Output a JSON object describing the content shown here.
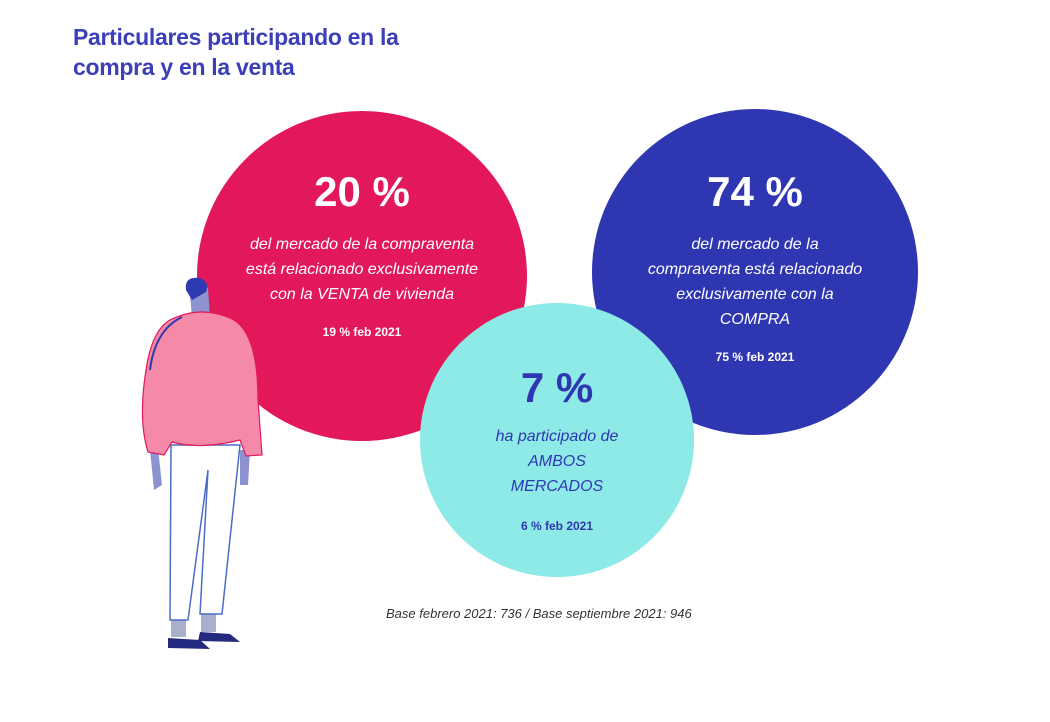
{
  "title": "Particulares participando en la compra y en la venta",
  "colors": {
    "title": "#3b3fb8",
    "venta": "#e2185a",
    "compra": "#2f36b2",
    "ambos": "#8eeae6"
  },
  "venta": {
    "percent": "20 %",
    "description": "del mercado de la compraventa está relacionado exclusivamente con la VENTA de vivienda",
    "previous": "19 % feb 2021"
  },
  "compra": {
    "percent": "74 %",
    "description": "del mercado de la compraventa está relacionado exclusivamente con la COMPRA",
    "previous": "75 % feb 2021"
  },
  "ambos": {
    "percent": "7 %",
    "description": "ha participado de AMBOS MERCADOS",
    "previous": "6 % feb 2021"
  },
  "footnote": "Base febrero 2021: 736 / Base septiembre 2021: 946",
  "illustration": "person-standing-illustration"
}
